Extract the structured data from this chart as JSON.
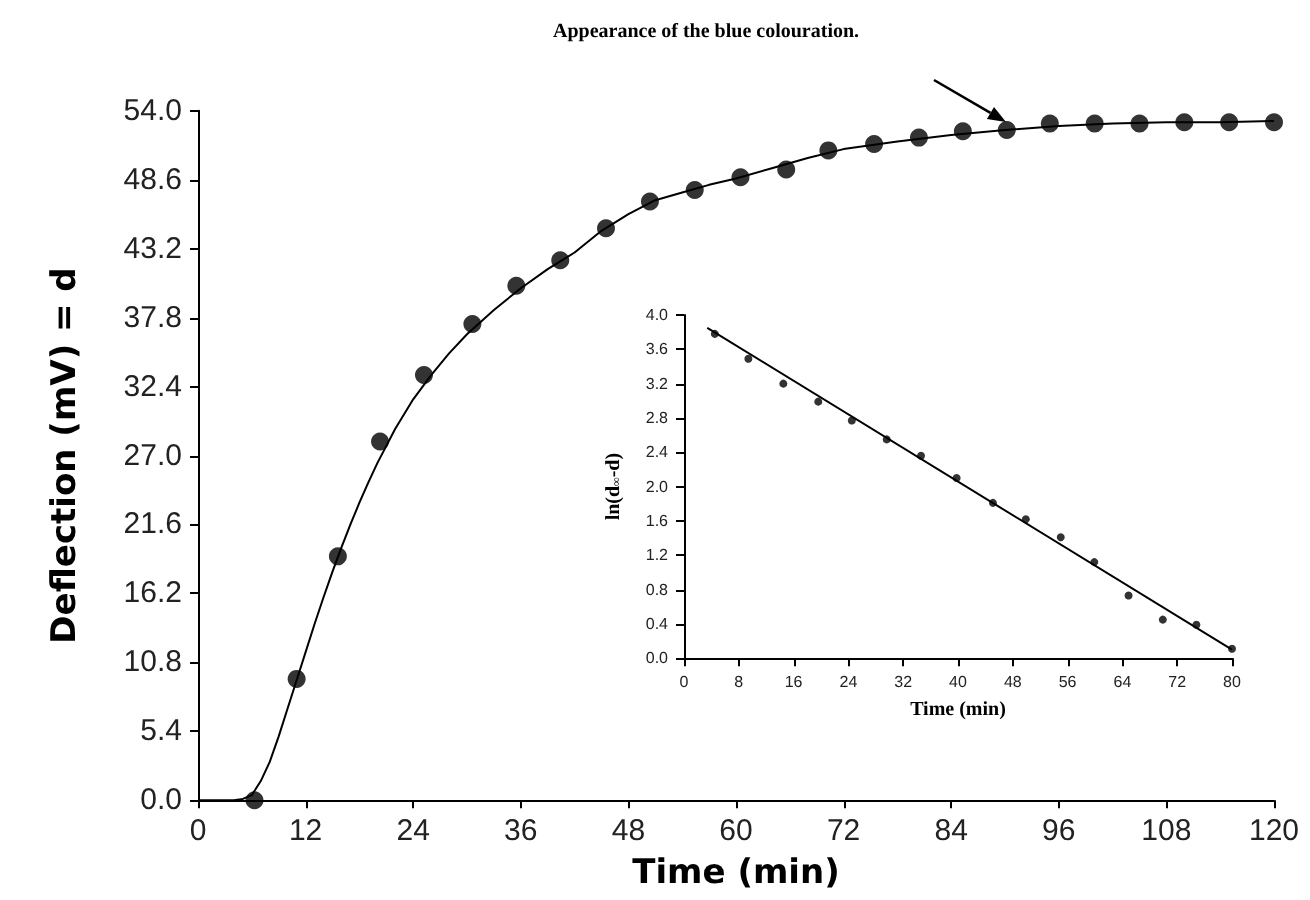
{
  "chart_data": [
    {
      "type": "scatter",
      "xlabel": "Time (min)",
      "ylabel": "Deflection (mV) = d",
      "marker": "circle",
      "grid": false,
      "annotations": [
        "Appearance of the blue colouration."
      ],
      "xlim": [
        0,
        120
      ],
      "xticks": [
        0,
        12,
        24,
        36,
        48,
        60,
        72,
        84,
        96,
        108,
        120
      ],
      "ylim": [
        0,
        54
      ],
      "yticks": [
        {
          "value": 0,
          "label": "0.0"
        },
        {
          "value": 5.4,
          "label": "5.4"
        },
        {
          "value": 10.8,
          "label": "10.8"
        },
        {
          "value": 16.2,
          "label": "16.2"
        },
        {
          "value": 21.6,
          "label": "21.6"
        },
        {
          "value": 27,
          "label": "27.0"
        },
        {
          "value": 32.4,
          "label": "32.4"
        },
        {
          "value": 37.8,
          "label": "37.8"
        },
        {
          "value": 43.2,
          "label": "43.2"
        },
        {
          "value": 48.6,
          "label": "48.6"
        },
        {
          "value": 54,
          "label": "54.0"
        }
      ],
      "series": [
        {
          "color": "#000000",
          "x": [
            6.3,
            11,
            15.6,
            20.3,
            25.2,
            30.6,
            35.5,
            40.4,
            45.5,
            50.4,
            55.4,
            60.5,
            65.6,
            70.3,
            75.4,
            80.4,
            85.3,
            90.2,
            95,
            100,
            105,
            110,
            115,
            120
          ],
          "values": [
            0,
            9.5,
            19.1,
            28.1,
            33.3,
            37.3,
            40.3,
            42.3,
            44.8,
            46.9,
            47.8,
            48.8,
            49.4,
            50.9,
            51.4,
            51.9,
            52.4,
            52.5,
            53,
            53,
            53,
            53.1,
            53.1,
            53.1
          ]
        },
        {
          "type": "line",
          "color": "#000000",
          "marker": "none",
          "x": [
            0,
            4,
            5,
            6,
            7,
            8,
            9,
            10,
            11,
            12,
            13,
            14,
            15,
            16,
            17,
            18,
            19,
            20,
            22,
            24,
            26,
            28,
            30,
            33,
            36,
            39,
            42,
            45,
            48,
            51,
            54,
            57,
            60,
            64,
            68,
            72,
            78,
            84,
            90,
            96,
            102,
            108,
            114,
            120
          ],
          "values": [
            0,
            0,
            0.1,
            0.4,
            1.5,
            3,
            5,
            7.2,
            9.4,
            11.6,
            13.8,
            15.9,
            17.9,
            19.8,
            21.6,
            23.3,
            24.9,
            26.4,
            29.1,
            31.4,
            33.3,
            35,
            36.5,
            38.4,
            40.1,
            41.6,
            42.9,
            44.6,
            45.9,
            47,
            47.6,
            48.2,
            48.7,
            49.5,
            50.3,
            51,
            51.6,
            52.1,
            52.5,
            52.8,
            53,
            53.1,
            53.1,
            53.2
          ]
        }
      ]
    },
    {
      "type": "scatter",
      "xlabel": "Time (min)",
      "ylabel": "ln(d$_{∞}$-d)",
      "marker": "circle",
      "grid": false,
      "xlim": [
        0,
        80
      ],
      "xticks": [
        0,
        8,
        16,
        24,
        32,
        40,
        48,
        56,
        64,
        72,
        80
      ],
      "ylim": [
        0,
        4
      ],
      "yticks": [
        {
          "value": 0,
          "label": "0.0"
        },
        {
          "value": 0.4,
          "label": "0.4"
        },
        {
          "value": 0.8,
          "label": "0.8"
        },
        {
          "value": 1.2,
          "label": "1.2"
        },
        {
          "value": 1.6,
          "label": "1.6"
        },
        {
          "value": 2,
          "label": "2.0"
        },
        {
          "value": 2.4,
          "label": "2.4"
        },
        {
          "value": 2.8,
          "label": "2.8"
        },
        {
          "value": 3.2,
          "label": "3.2"
        },
        {
          "value": 3.6,
          "label": "3.6"
        },
        {
          "value": 4,
          "label": "4.0"
        }
      ],
      "series": [
        {
          "color": "#000000",
          "x": [
            4.5,
            9.4,
            14.5,
            19.6,
            24.5,
            29.6,
            34.6,
            39.8,
            45.1,
            49.9,
            55,
            59.9,
            64.9,
            69.9,
            74.8,
            80
          ],
          "values": [
            3.78,
            3.49,
            3.2,
            2.99,
            2.77,
            2.55,
            2.36,
            2.1,
            1.81,
            1.62,
            1.41,
            1.12,
            0.73,
            0.45,
            0.39,
            0.11
          ]
        },
        {
          "type": "line",
          "color": "#000000",
          "marker": "none",
          "x": [
            3.4,
            80
          ],
          "values": [
            3.85,
            0.1
          ]
        }
      ]
    }
  ]
}
